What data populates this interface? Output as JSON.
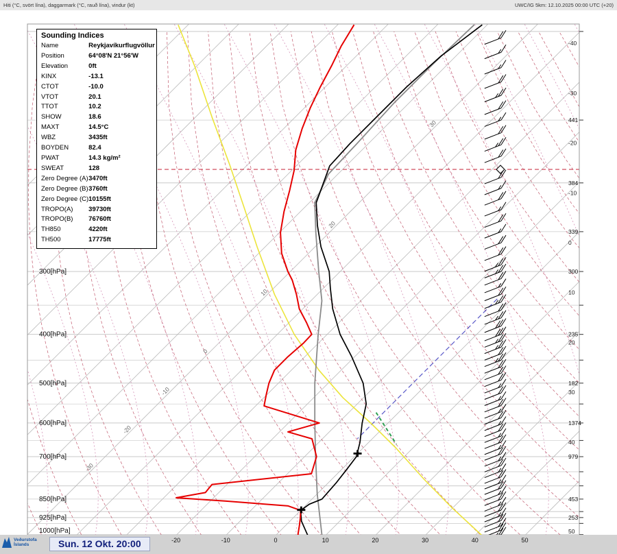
{
  "header": {
    "left": "Hiti (°C, svört lína), daggarmark (°C, rauð lína), vindur (kt)",
    "right": "UWC/IG 5km: 12.10.2025 00:00 UTC (+20)"
  },
  "indices": {
    "title": "Sounding Indices",
    "rows": [
      {
        "label": "Name",
        "value": "Reykjavíkurflugvöllur"
      },
      {
        "label": "Position",
        "value": "64°08'N 21°56'W"
      },
      {
        "label": "Elevation",
        "value": "0ft"
      },
      {
        "label": "KINX",
        "value": "-13.1"
      },
      {
        "label": "CTOT",
        "value": "-10.0"
      },
      {
        "label": "VTOT",
        "value": "20.1"
      },
      {
        "label": "TTOT",
        "value": "10.2"
      },
      {
        "label": "SHOW",
        "value": "18.6"
      },
      {
        "label": "MAXT",
        "value": "14.5°C"
      },
      {
        "label": "WBZ",
        "value": "3435ft"
      },
      {
        "label": "BOYDEN",
        "value": "82.4"
      },
      {
        "label": "PWAT",
        "value": "14.3 kg/m²"
      },
      {
        "label": "SWEAT",
        "value": "128"
      },
      {
        "label": "Zero Degree (A)",
        "value": "3470ft"
      },
      {
        "label": "Zero Degree (B)",
        "value": "3760ft"
      },
      {
        "label": "Zero Degree (C)",
        "value": "10155ft"
      },
      {
        "label": "TROPO(A)",
        "value": "39730ft"
      },
      {
        "label": "TROPO(B)",
        "value": "76760ft"
      },
      {
        "label": "TH850",
        "value": "4220ft"
      },
      {
        "label": "TH500",
        "value": "17775ft"
      }
    ]
  },
  "footer": {
    "date": "Sun. 12 Okt. 20:00",
    "logo_line1": "Veðurstofa",
    "logo_line2": "Íslands"
  },
  "chart_data": {
    "type": "skewt_log_p_sounding",
    "station": "Reykjavíkurflugvöllur",
    "pressure_unit": "hPa",
    "temperature_unit": "°C",
    "pressure_range": [
      97,
      1005
    ],
    "pressure_gridlines": [
      100,
      150,
      200,
      250,
      300,
      350,
      400,
      450,
      500,
      550,
      600,
      650,
      700,
      750,
      800,
      850,
      900,
      925,
      950,
      1000
    ],
    "pressure_axis_labels": [
      {
        "p": 300,
        "text": "300[hPa]"
      },
      {
        "p": 400,
        "text": "400[hPa]"
      },
      {
        "p": 500,
        "text": "500[hPa]"
      },
      {
        "p": 600,
        "text": "600[hPa]"
      },
      {
        "p": 700,
        "text": "700[hPa]"
      },
      {
        "p": 850,
        "text": "850[hPa]"
      },
      {
        "p": 925,
        "text": "925[hPa]"
      },
      {
        "p": 1000,
        "text": "1000[hPa]"
      }
    ],
    "height_labels": [
      {
        "p": 150,
        "text": "441"
      },
      {
        "p": 200,
        "text": "384"
      },
      {
        "p": 250,
        "text": "339"
      },
      {
        "p": 300,
        "text": "300"
      },
      {
        "p": 400,
        "text": "235"
      },
      {
        "p": 500,
        "text": "182"
      },
      {
        "p": 600,
        "text": "1374"
      },
      {
        "p": 700,
        "text": "979"
      },
      {
        "p": 850,
        "text": "453"
      },
      {
        "p": 925,
        "text": "253"
      },
      {
        "p": 1000,
        "text": "50"
      }
    ],
    "right_temp_ticks": [
      -40,
      -30,
      -20,
      -10,
      0,
      10,
      20,
      30,
      40
    ],
    "bottom_temp_ticks": [
      -20,
      -10,
      0,
      10,
      20,
      30,
      40,
      50
    ],
    "adiabat_labels": [
      {
        "v": "-30",
        "y": 688
      },
      {
        "v": "-20",
        "y": 633
      },
      {
        "v": "-10",
        "y": 577
      },
      {
        "v": "0",
        "y": 516
      },
      {
        "v": "10",
        "y": 432
      },
      {
        "v": "20",
        "y": 333
      },
      {
        "v": "30",
        "y": 186
      }
    ],
    "special": {
      "tropopause_p": 188,
      "blue": {
        "t": -3,
        "p_top": 340,
        "p_bottom": 645
      },
      "green_segment": [
        [
          572,
          -4.5
        ],
        [
          661,
          5.9
        ]
      ]
    },
    "zero_degree_markers": [
      [
        893,
        0
      ],
      [
        690,
        0
      ]
    ],
    "series": {
      "temperature": {
        "name": "Hiti (svört lína)",
        "color": "#000000",
        "points": [
          [
            97,
            -61.0
          ],
          [
            112,
            -63.0
          ],
          [
            129,
            -63.7
          ],
          [
            149,
            -63.7
          ],
          [
            167,
            -63.7
          ],
          [
            185,
            -63.3
          ],
          [
            201,
            -61.0
          ],
          [
            219,
            -58.6
          ],
          [
            243,
            -53.8
          ],
          [
            268,
            -48.8
          ],
          [
            300,
            -42.2
          ],
          [
            324,
            -38.6
          ],
          [
            356,
            -34.0
          ],
          [
            400,
            -27.4
          ],
          [
            443,
            -20.6
          ],
          [
            500,
            -13.0
          ],
          [
            550,
            -8.2
          ],
          [
            600,
            -5.2
          ],
          [
            655,
            -1.8
          ],
          [
            700,
            0.4
          ],
          [
            740,
            1.0
          ],
          [
            790,
            1.6
          ],
          [
            850,
            2.0
          ],
          [
            870,
            0.5
          ],
          [
            895,
            0.0
          ],
          [
            940,
            2.3
          ],
          [
            1000,
            6.2
          ],
          [
            1005,
            6.5
          ]
        ]
      },
      "dewpoint": {
        "name": "Daggarmark (rauð lína)",
        "color": "#e60000",
        "points": [
          [
            97,
            -86.7
          ],
          [
            107,
            -85.0
          ],
          [
            117,
            -83.0
          ],
          [
            129,
            -81.0
          ],
          [
            142,
            -78.8
          ],
          [
            156,
            -76.3
          ],
          [
            172,
            -73.3
          ],
          [
            189,
            -69.5
          ],
          [
            207,
            -66.4
          ],
          [
            228,
            -63.3
          ],
          [
            251,
            -59.8
          ],
          [
            276,
            -55.4
          ],
          [
            300,
            -50.5
          ],
          [
            312,
            -47.9
          ],
          [
            333,
            -44.2
          ],
          [
            356,
            -40.7
          ],
          [
            379,
            -36.5
          ],
          [
            400,
            -33.1
          ],
          [
            416,
            -33.0
          ],
          [
            443,
            -33.4
          ],
          [
            471,
            -33.4
          ],
          [
            500,
            -31.9
          ],
          [
            526,
            -30.2
          ],
          [
            555,
            -28.3
          ],
          [
            600,
            -13.8
          ],
          [
            625,
            -18.3
          ],
          [
            645,
            -12.1
          ],
          [
            700,
            -7.6
          ],
          [
            757,
            -5.2
          ],
          [
            795,
            -23.0
          ],
          [
            825,
            -22.7
          ],
          [
            845,
            -27.5
          ],
          [
            858,
            -16.8
          ],
          [
            877,
            -3.4
          ],
          [
            895,
            0.0
          ],
          [
            928,
            1.5
          ],
          [
            960,
            2.8
          ],
          [
            1000,
            4.3
          ],
          [
            1005,
            4.8
          ]
        ]
      },
      "wetbulb": {
        "name": "Gray line",
        "color": "#8a8a8a",
        "points": [
          [
            97,
            -62.6
          ],
          [
            116,
            -63.0
          ],
          [
            139,
            -63.0
          ],
          [
            167,
            -62.3
          ],
          [
            192,
            -61.9
          ],
          [
            219,
            -58.9
          ],
          [
            251,
            -52.7
          ],
          [
            300,
            -44.3
          ],
          [
            343,
            -37.8
          ],
          [
            400,
            -31.8
          ],
          [
            500,
            -22.7
          ],
          [
            600,
            -14.7
          ],
          [
            700,
            -7.8
          ],
          [
            830,
            0.0
          ],
          [
            1000,
            9.1
          ],
          [
            1005,
            9.4
          ]
        ]
      },
      "parcel_curve": {
        "name": "Yellow curve",
        "color": "#ece43c",
        "points": [
          [
            97,
            -122.0
          ],
          [
            117,
            -110.5
          ],
          [
            148,
            -96.7
          ],
          [
            184,
            -83.6
          ],
          [
            222,
            -72.6
          ],
          [
            268,
            -61.6
          ],
          [
            333,
            -48.6
          ],
          [
            400,
            -36.6
          ],
          [
            471,
            -24.5
          ],
          [
            534,
            -14.2
          ],
          [
            602,
            -3.2
          ],
          [
            672,
            6.5
          ],
          [
            779,
            18.8
          ],
          [
            884,
            29.8
          ],
          [
            1005,
            41.5
          ]
        ]
      }
    },
    "wind_barbs_unit": "kt",
    "wind_barbs": [
      [
        103,
        20
      ],
      [
        110,
        15
      ],
      [
        118,
        15
      ],
      [
        126,
        20
      ],
      [
        134,
        25
      ],
      [
        142,
        20
      ],
      [
        150,
        15
      ],
      [
        159,
        20
      ],
      [
        168,
        25
      ],
      [
        177,
        20
      ],
      [
        195,
        20
      ],
      [
        205,
        15
      ],
      [
        215,
        20
      ],
      [
        226,
        15
      ],
      [
        238,
        20
      ],
      [
        250,
        15
      ],
      [
        263,
        20
      ],
      [
        277,
        20
      ],
      [
        291,
        25
      ],
      [
        300,
        25
      ],
      [
        310,
        20
      ],
      [
        321,
        15
      ],
      [
        333,
        20
      ],
      [
        345,
        25
      ],
      [
        358,
        20
      ],
      [
        371,
        25
      ],
      [
        385,
        30
      ],
      [
        400,
        30
      ],
      [
        412,
        25
      ],
      [
        424,
        25
      ],
      [
        437,
        20
      ],
      [
        450,
        25
      ],
      [
        464,
        20
      ],
      [
        478,
        20
      ],
      [
        493,
        20
      ],
      [
        508,
        15
      ],
      [
        523,
        20
      ],
      [
        538,
        15
      ],
      [
        554,
        20
      ],
      [
        570,
        15
      ],
      [
        586,
        20
      ],
      [
        603,
        15
      ],
      [
        620,
        20
      ],
      [
        637,
        15
      ],
      [
        655,
        20
      ],
      [
        673,
        15
      ],
      [
        691,
        20
      ],
      [
        710,
        15
      ],
      [
        729,
        20
      ],
      [
        748,
        15
      ],
      [
        768,
        20
      ],
      [
        788,
        15
      ],
      [
        808,
        20
      ],
      [
        829,
        15
      ],
      [
        850,
        20
      ],
      [
        872,
        15
      ],
      [
        894,
        20
      ],
      [
        916,
        15
      ],
      [
        938,
        20
      ],
      [
        960,
        15
      ],
      [
        980,
        20
      ],
      [
        1000,
        25
      ]
    ],
    "colors": {
      "temperature": "#000000",
      "dewpoint": "#e60000",
      "wetbulb": "#8a8a8a",
      "parcel": "#ece43c",
      "isotherm": "#b9b9b9",
      "pressure_line": "#c9c9c9",
      "dry_adiabat": "#c25a6e",
      "moist_adiabat": "#cf84ad",
      "tropopause": "#cc3b4e",
      "green": "#2fa053",
      "blue": "#5958c8",
      "barb": "#000000"
    }
  }
}
